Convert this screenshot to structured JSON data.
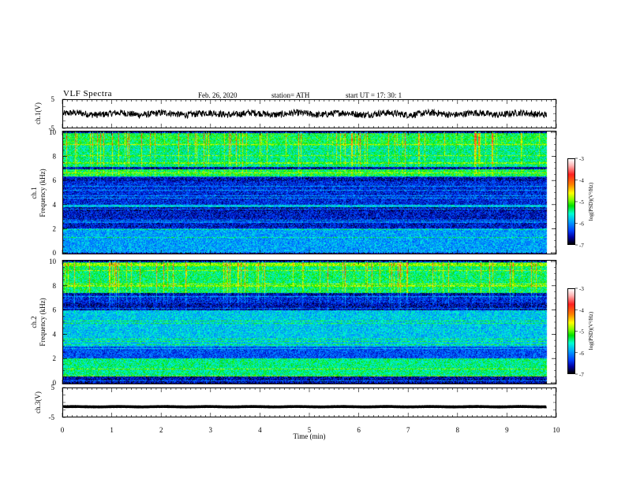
{
  "header": {
    "title": "VLF  Spectra",
    "date": "Feb. 26, 2020",
    "station": "station= ATH",
    "start": "start  UT  =    17: 30: 1"
  },
  "colorbar": {
    "label": "log(PSD)(V²/Hz)",
    "ticks": [
      "-3",
      "-4",
      "-5",
      "-6",
      "-7"
    ]
  },
  "chart_data": [
    {
      "type": "line",
      "name": "ch1-waveform",
      "ylabel": "ch.1(V)",
      "ylim": [
        -5,
        5
      ],
      "yticks": [
        "5",
        "-5"
      ],
      "x_range_min": [
        0,
        9.82
      ],
      "typical_level_v": 0.0,
      "amplitude_v": 1.2
    },
    {
      "type": "heatmap",
      "name": "ch1-spectrogram",
      "ylabel": "ch.1\nFrequency (kHz)",
      "xlim_min": [
        0,
        9.82
      ],
      "ylim_khz": [
        0,
        10
      ],
      "yticks": [
        "0",
        "2",
        "4",
        "6",
        "8",
        "10"
      ],
      "color_scale": "log(PSD)(V²/Hz)",
      "zlim": [
        -7,
        -3
      ],
      "bands_khz": [
        {
          "range": [
            9.0,
            10.0
          ],
          "level": -5.0
        },
        {
          "range": [
            7.2,
            9.0
          ],
          "level": -5.2
        },
        {
          "range": [
            6.4,
            7.0
          ],
          "level": -5.0
        },
        {
          "range": [
            4.0,
            6.0
          ],
          "level": -6.4
        },
        {
          "range": [
            3.8,
            4.0
          ],
          "level": -5.6
        },
        {
          "range": [
            2.0,
            3.5
          ],
          "level": -6.5
        },
        {
          "range": [
            0.0,
            2.0
          ],
          "level": -5.8
        }
      ]
    },
    {
      "type": "heatmap",
      "name": "ch2-spectrogram",
      "ylabel": "ch.2\nFrequency (kHz)",
      "xlim_min": [
        0,
        9.82
      ],
      "ylim_khz": [
        0,
        10
      ],
      "yticks": [
        "0",
        "2",
        "4",
        "6",
        "8",
        "10"
      ],
      "color_scale": "log(PSD)(V²/Hz)",
      "zlim": [
        -7,
        -3
      ],
      "bands_khz": [
        {
          "range": [
            7.5,
            10.0
          ],
          "level": -5.1
        },
        {
          "range": [
            6.6,
            7.3
          ],
          "level": -6.4
        },
        {
          "range": [
            3.0,
            6.0
          ],
          "level": -5.6
        },
        {
          "range": [
            2.0,
            3.0
          ],
          "level": -6.2
        },
        {
          "range": [
            0.5,
            2.0
          ],
          "level": -5.2
        }
      ]
    },
    {
      "type": "line",
      "name": "ch3-waveform",
      "ylabel": "ch.3(V)",
      "ylim": [
        -5,
        5
      ],
      "yticks": [
        "5",
        "-5"
      ],
      "x_range_min": [
        0,
        9.82
      ],
      "typical_level_v": -1.5,
      "amplitude_v": 0.2
    }
  ],
  "xaxis": {
    "label": "Time  (min)",
    "ticks": [
      "0",
      "1",
      "2",
      "3",
      "4",
      "5",
      "6",
      "7",
      "8",
      "9",
      "10"
    ],
    "xlim": [
      0,
      10
    ]
  }
}
